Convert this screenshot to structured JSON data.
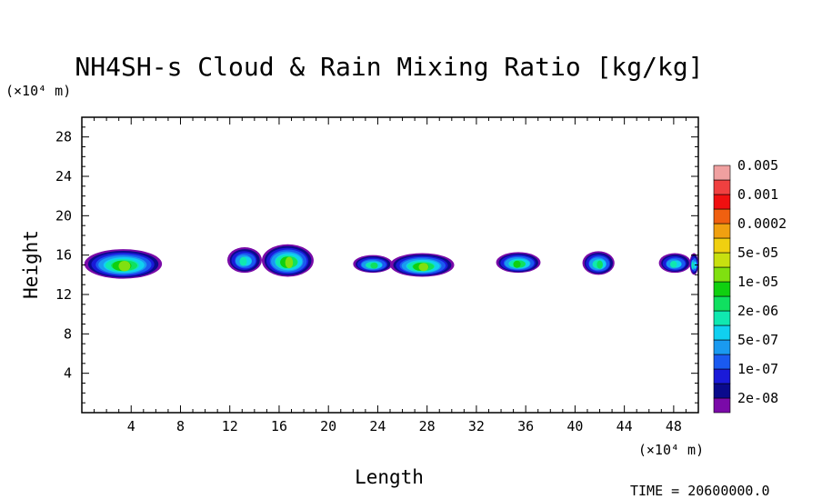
{
  "chart_data": {
    "type": "heatmap",
    "title": "NH4SH-s Cloud & Rain Mixing Ratio [kg/kg]",
    "xlabel": "Length",
    "ylabel": "Height",
    "x_unit": "(×10⁴ m)",
    "y_unit": "(×10⁴ m)",
    "xlim": [
      0,
      50
    ],
    "ylim": [
      0,
      30
    ],
    "x_ticks": [
      4,
      8,
      12,
      16,
      20,
      24,
      28,
      32,
      36,
      40,
      44,
      48
    ],
    "y_ticks": [
      4,
      8,
      12,
      16,
      20,
      24,
      28
    ],
    "x_tick_labels": [
      "4",
      "8",
      "12",
      "16",
      "20",
      "24",
      "28",
      "32",
      "36",
      "40",
      "44",
      "48"
    ],
    "y_tick_labels": [
      "4",
      "8",
      "12",
      "16",
      "20",
      "24",
      "28"
    ],
    "colorbar": {
      "colors": [
        "#7a0aa8",
        "#0a0a8c",
        "#1a1ad8",
        "#1a5af0",
        "#1a9af0",
        "#10d0f0",
        "#10e8b0",
        "#10e060",
        "#10d010",
        "#80e010",
        "#c8e010",
        "#f0d010",
        "#f0a010",
        "#f06010",
        "#f01010",
        "#f04040",
        "#f0a0a0"
      ],
      "labels": [
        "2e-08",
        "1e-07",
        "5e-07",
        "2e-06",
        "1e-05",
        "5e-05",
        "0.0002",
        "0.001",
        "0.005"
      ]
    },
    "cloud_blobs": [
      {
        "x0": 0.2,
        "x1": 6.5,
        "y0": 13.6,
        "y1": 16.6,
        "peak": 9
      },
      {
        "x0": 11.8,
        "x1": 14.6,
        "y0": 14.2,
        "y1": 16.8,
        "peak": 6
      },
      {
        "x0": 14.6,
        "x1": 18.8,
        "y0": 13.8,
        "y1": 17.1,
        "peak": 9
      },
      {
        "x0": 22.0,
        "x1": 25.2,
        "y0": 14.2,
        "y1": 16.0,
        "peak": 7
      },
      {
        "x0": 25.0,
        "x1": 30.2,
        "y0": 13.8,
        "y1": 16.2,
        "peak": 9
      },
      {
        "x0": 33.6,
        "x1": 37.2,
        "y0": 14.2,
        "y1": 16.3,
        "peak": 8
      },
      {
        "x0": 40.6,
        "x1": 43.2,
        "y0": 14.0,
        "y1": 16.4,
        "peak": 7
      },
      {
        "x0": 46.8,
        "x1": 49.4,
        "y0": 14.2,
        "y1": 16.2,
        "peak": 6
      },
      {
        "x0": 49.3,
        "x1": 50.0,
        "y0": 14.0,
        "y1": 16.2,
        "peak": 6
      }
    ],
    "time_label": "TIME = 20600000.0"
  }
}
